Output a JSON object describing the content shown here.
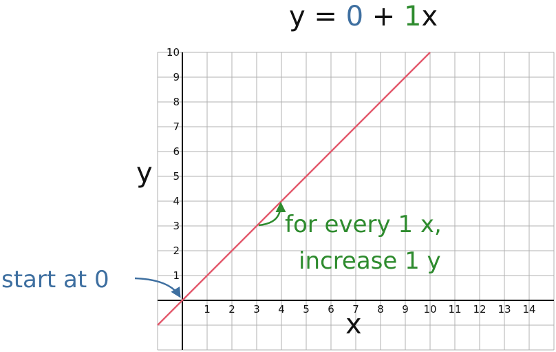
{
  "equation": {
    "prefix": "y = ",
    "intercept": "0",
    "plus": " + ",
    "slope": "1",
    "suffix": "x"
  },
  "colors": {
    "intercept": "#3e6fa0",
    "slope": "#2e8b2e",
    "line": "#e35a6d",
    "grid": "#b0b0b0",
    "axis": "#111111"
  },
  "chart_data": {
    "type": "line",
    "xlabel": "x",
    "ylabel": "y",
    "xlim": [
      -1,
      15
    ],
    "ylim": [
      -2,
      10
    ],
    "grid": true,
    "x_ticks": [
      1,
      2,
      3,
      4,
      5,
      6,
      7,
      8,
      9,
      10,
      11,
      12,
      13,
      14
    ],
    "y_ticks": [
      1,
      2,
      3,
      4,
      5,
      6,
      7,
      8,
      9,
      10
    ],
    "series": [
      {
        "x": [
          -1,
          10
        ],
        "y": [
          -1,
          10
        ]
      }
    ],
    "annotations": {
      "start": "start at 0",
      "rise_line1": "for every 1 x,",
      "rise_line2": "increase 1 y"
    }
  }
}
